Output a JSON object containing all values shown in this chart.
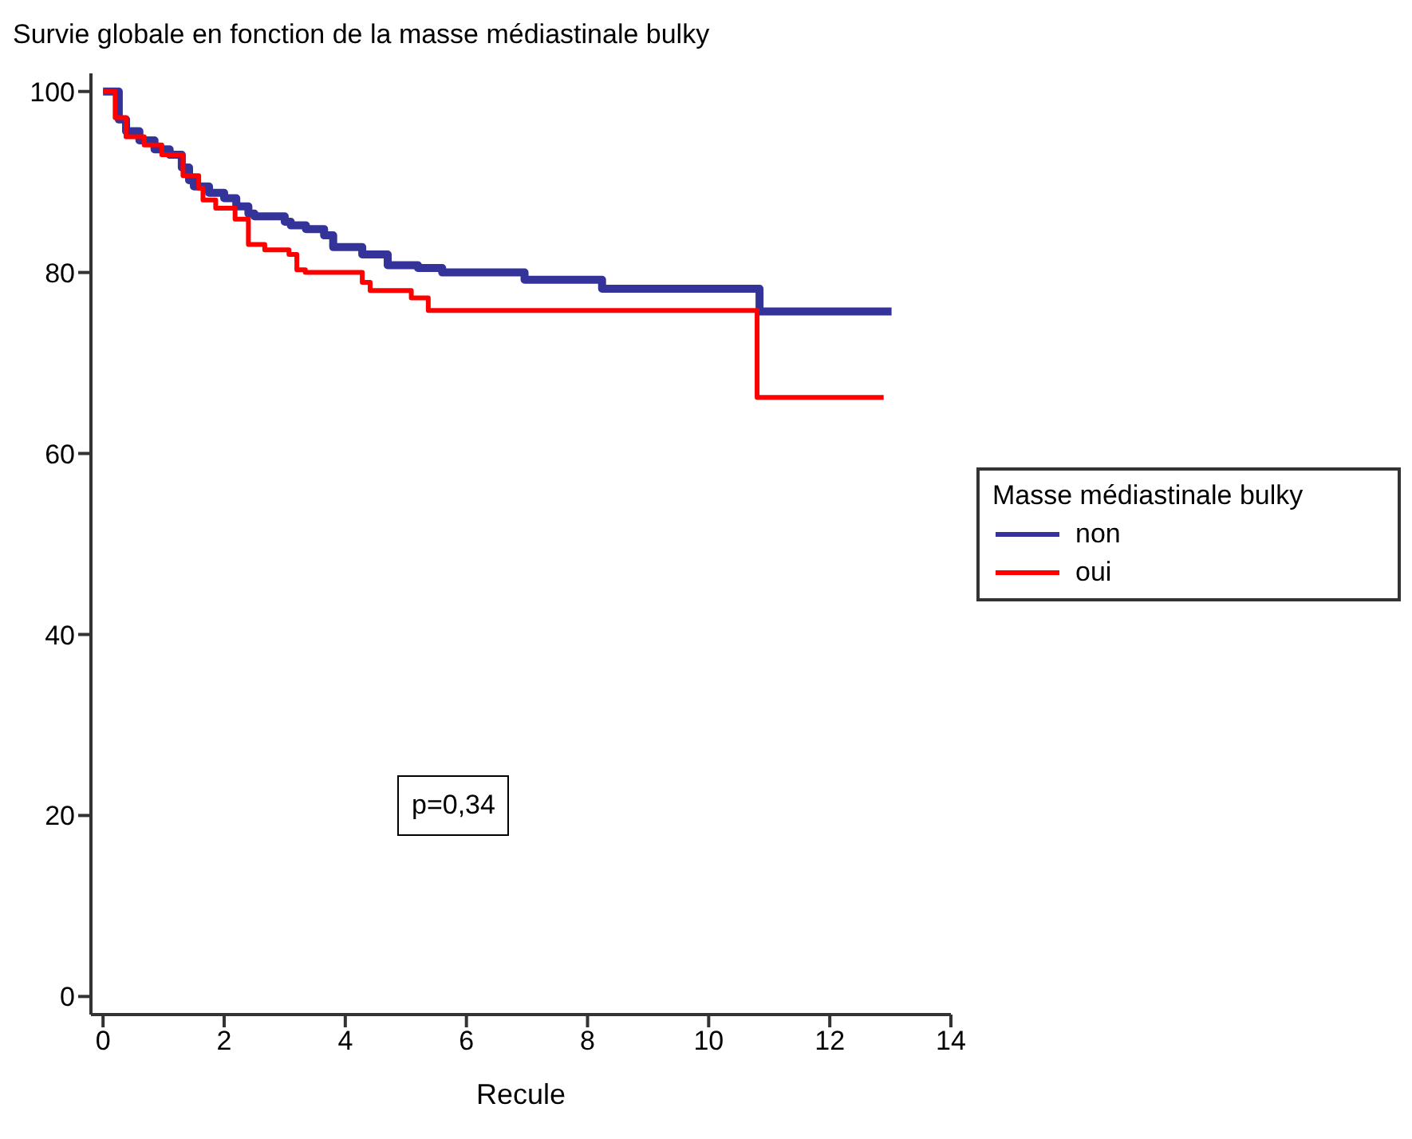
{
  "chart_data": {
    "type": "step",
    "title": "Survie globale en fonction de la masse médiastinale bulky",
    "xlabel": "Recule",
    "legend_title": "Masse médiastinale bulky",
    "annotations": [
      "p=0,34"
    ],
    "xlim": [
      -0.2,
      14
    ],
    "xticks": [
      0,
      2,
      4,
      6,
      8,
      10,
      12,
      14
    ],
    "ylim": [
      -2,
      102
    ],
    "yticks": [
      0,
      20,
      40,
      60,
      80,
      100
    ],
    "grid": false,
    "legend": "right",
    "marker": "none",
    "line_style": "solid",
    "series": [
      {
        "name": "non",
        "color": "#333399",
        "x": [
          0,
          0.26,
          0.38,
          0.6,
          0.85,
          1.1,
          1.3,
          1.42,
          1.5,
          1.75,
          2.0,
          2.2,
          2.4,
          2.5,
          3.0,
          3.1,
          3.35,
          3.65,
          3.8,
          4.28,
          4.7,
          5.2,
          5.6,
          6.96,
          8.24,
          10.84,
          13.02
        ],
        "values": [
          100,
          96.9,
          95.6,
          94.6,
          93.6,
          93.0,
          91.6,
          90.2,
          89.5,
          88.8,
          88.2,
          87.3,
          86.5,
          86.2,
          85.6,
          85.2,
          84.8,
          84.1,
          82.8,
          82.0,
          80.8,
          80.5,
          80.0,
          79.2,
          78.2,
          75.7,
          75.7
        ]
      },
      {
        "name": "oui",
        "color": "#ff0000",
        "x": [
          0,
          0.2,
          0.38,
          0.68,
          0.97,
          1.32,
          1.58,
          1.65,
          1.86,
          2.18,
          2.4,
          2.67,
          3.07,
          3.2,
          3.34,
          4.28,
          4.41,
          5.09,
          5.37,
          10.8,
          12.89
        ],
        "values": [
          100,
          97.1,
          95.0,
          94.1,
          93.0,
          90.7,
          89.3,
          88.0,
          87.1,
          85.9,
          83.1,
          82.5,
          82.0,
          80.3,
          80.0,
          78.9,
          78.0,
          77.2,
          75.8,
          66.2,
          66.2
        ]
      }
    ]
  }
}
